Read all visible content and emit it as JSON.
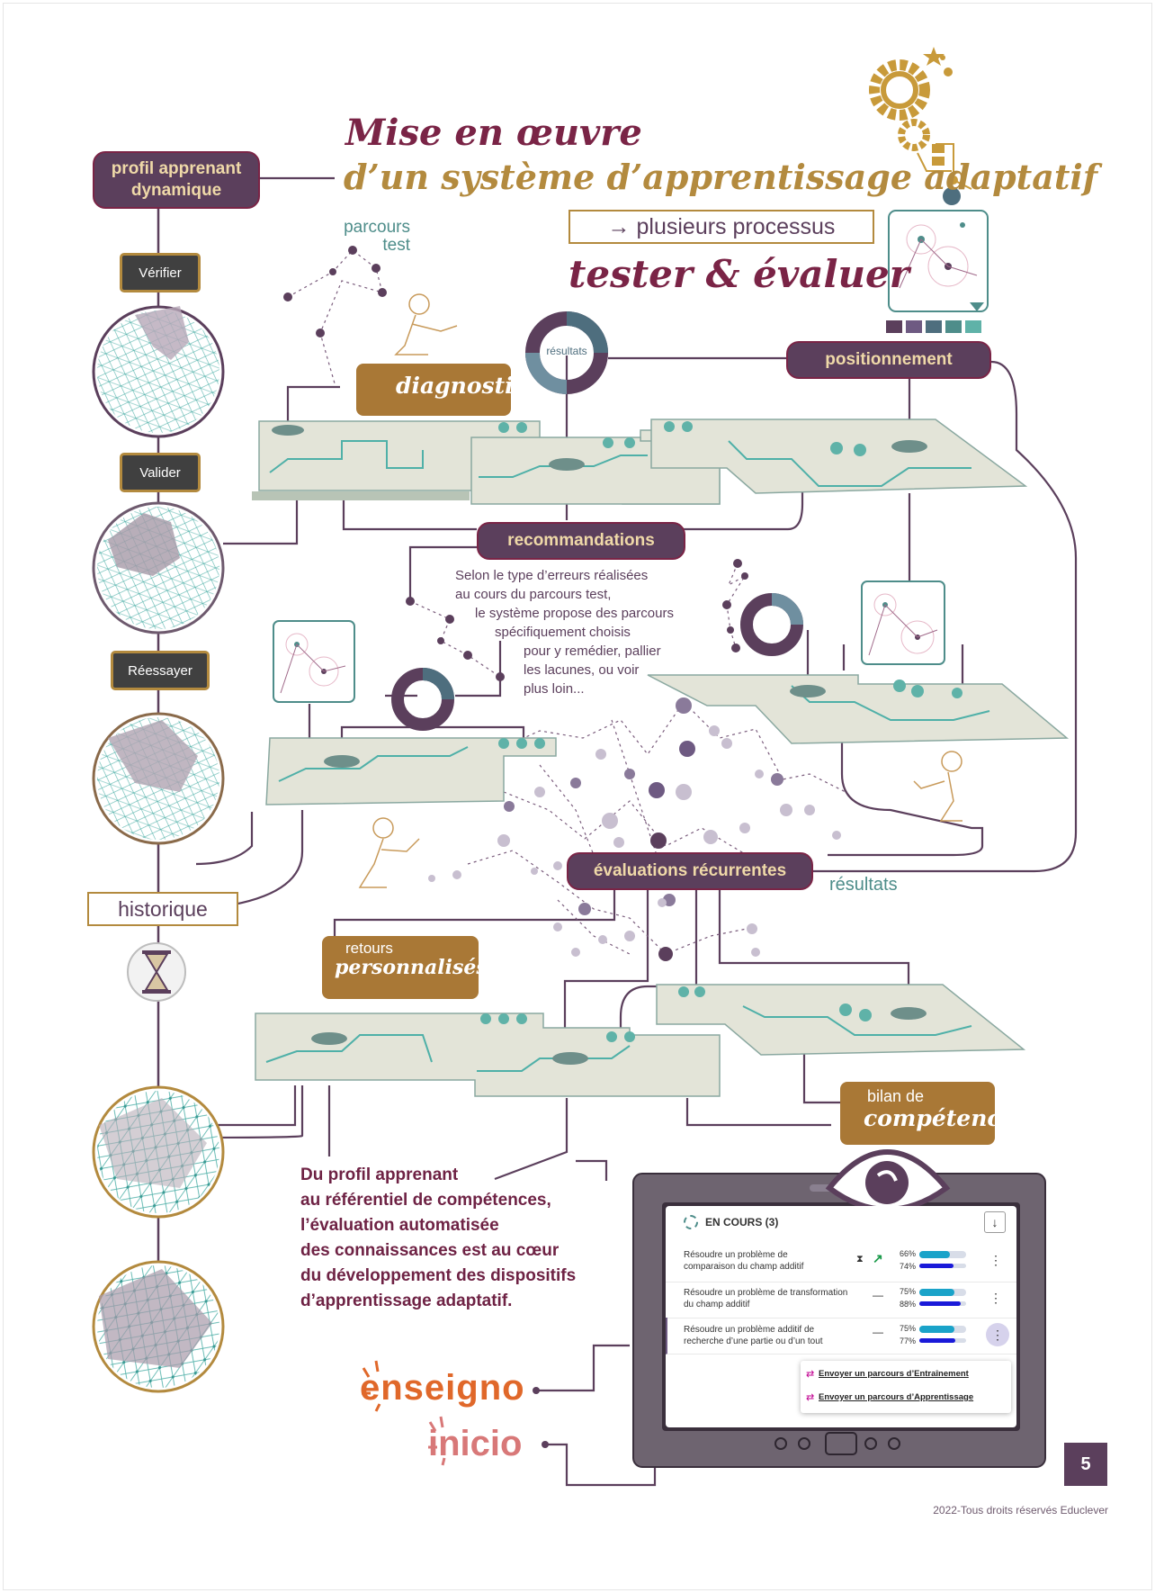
{
  "title": {
    "line1": "Mise en œuvre",
    "line2": "d’un système d’apprentissage adaptatif"
  },
  "processes_box": "→ plusieurs processus",
  "tester_evaluer": "tester & évaluer",
  "profil_dynamique": "profil apprenant\ndynamique",
  "steps": {
    "verifier": "Vérifier",
    "valider": "Valider",
    "reessayer": "Réessayer"
  },
  "historique": "historique",
  "parcours_test": {
    "line1": "parcours",
    "line2": "test"
  },
  "resultats_ring": "résultats",
  "diagnostic": "diagnostic",
  "positionnement": "positionnement",
  "recommandations": "recommandations",
  "reco_text": [
    "Selon le type d’erreurs réalisées",
    "au cours du parcours test,",
    "le système propose des parcours",
    "spécifiquement choisis",
    "pour y remédier, pallier",
    "les lacunes, ou voir",
    "plus loin..."
  ],
  "evaluations": "évaluations récurrentes",
  "resultats_label": "résultats",
  "retours": {
    "line1": "retours",
    "line2": "personnalisés"
  },
  "bilan": {
    "line1": "bilan de",
    "line2": "compétence"
  },
  "conclusion": [
    "Du profil apprenant",
    "au référentiel de compétences,",
    "l’évaluation automatisée",
    "des connaissances est au cœur",
    "du développement des dispositifs",
    "d’apprentissage adaptatif."
  ],
  "brands": {
    "enseigno": "enseigno",
    "inicio": "inicio"
  },
  "tablet": {
    "header": "EN COURS (3)",
    "rows": [
      {
        "label1": "Résoudre un problème de",
        "label2": "comparaison du champ additif",
        "p1": "66%",
        "p2": "74%",
        "v1": 66,
        "v2": 74
      },
      {
        "label1": "Résoudre un problème de transformation",
        "label2": "du champ additif",
        "p1": "75%",
        "p2": "88%",
        "v1": 75,
        "v2": 88
      },
      {
        "label1": "Résoudre un problème additif de",
        "label2": "recherche d’une partie ou d’un tout",
        "p1": "75%",
        "p2": "77%",
        "v1": 75,
        "v2": 77
      }
    ],
    "menu": [
      "Envoyer un parcours d’Entraînement",
      "Envoyer un parcours d’Apprentissage"
    ]
  },
  "page_number": "5",
  "footer": "2022-Tous droits réservés Educlever",
  "colors": {
    "plum": "#5b3f5c",
    "wine": "#7a2446",
    "gold": "#b38a3e",
    "teal": "#4e8d8a",
    "board": "#e3e4d8"
  }
}
